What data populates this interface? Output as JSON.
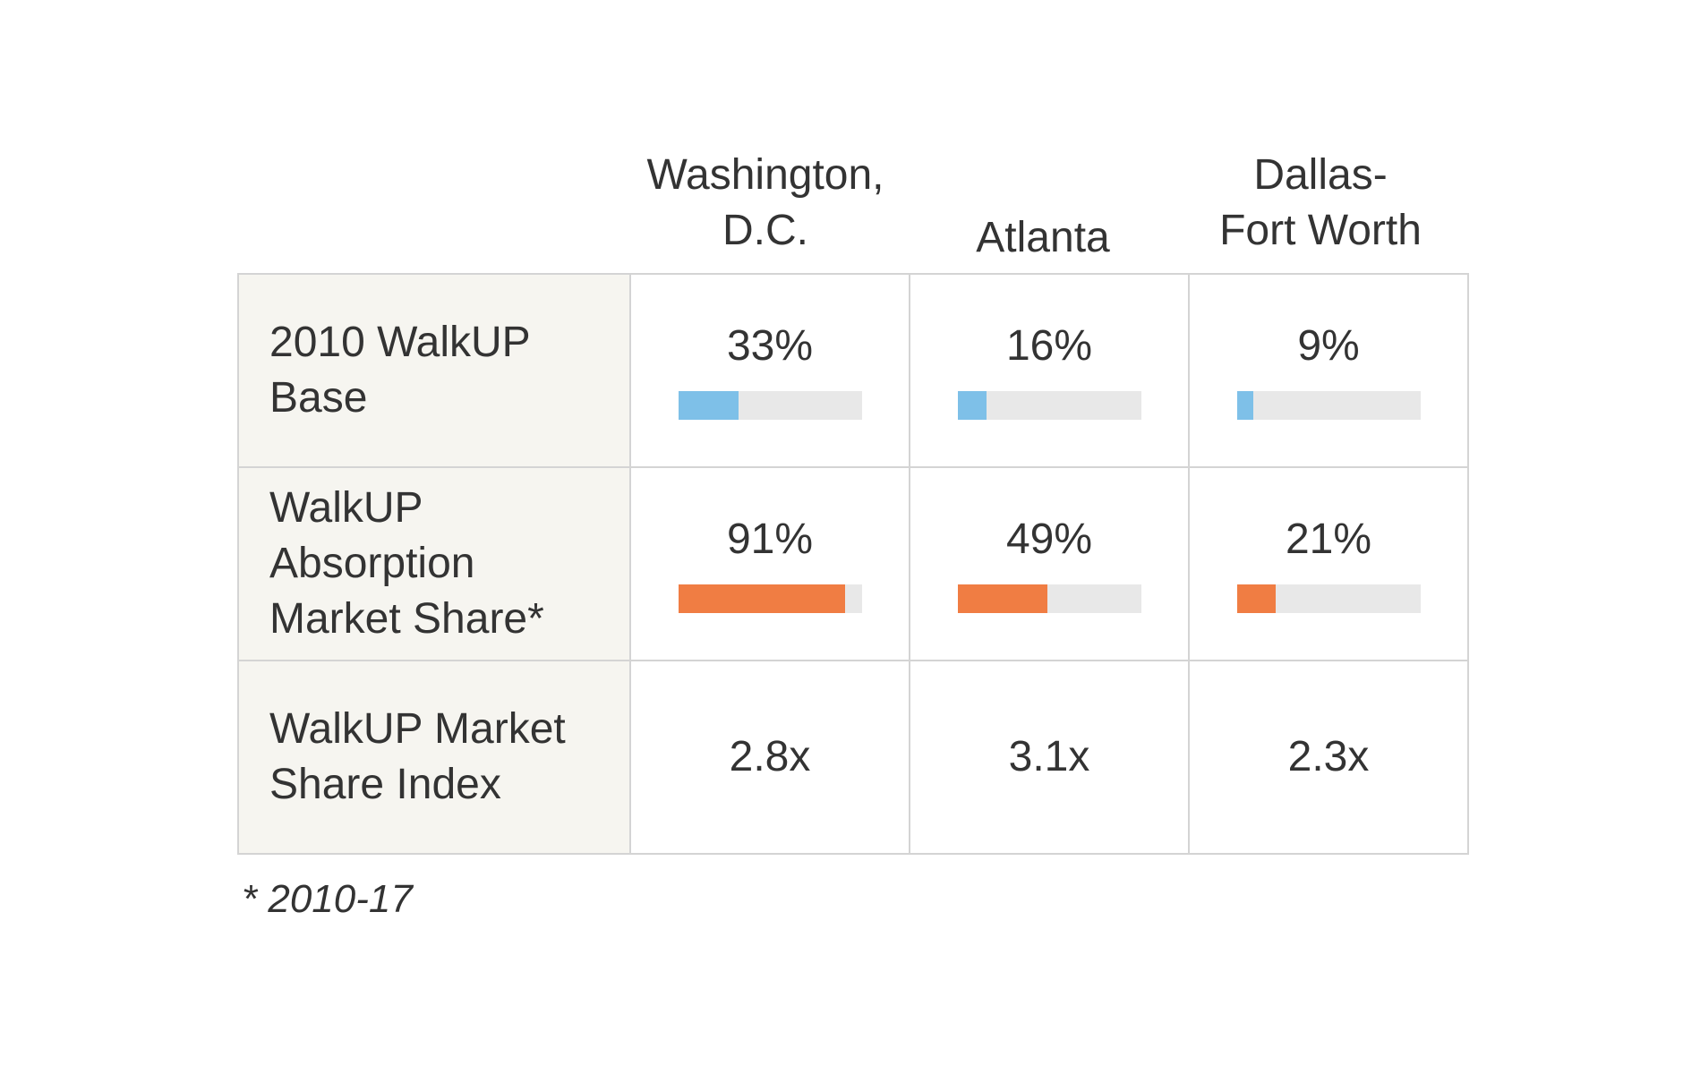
{
  "chart_data": {
    "type": "table",
    "columns": [
      "Washington,\nD.C.",
      "Atlanta",
      "Dallas-\nFort Worth"
    ],
    "rows": [
      {
        "label": "2010 WalkUP\nBase",
        "values": [
          33,
          16,
          9
        ],
        "display": [
          "33%",
          "16%",
          "9%"
        ],
        "bar": true,
        "bar_color": "#7ec0e8"
      },
      {
        "label": "WalkUP\nAbsorption\nMarket Share*",
        "values": [
          91,
          49,
          21
        ],
        "display": [
          "91%",
          "49%",
          "21%"
        ],
        "bar": true,
        "bar_color": "#f07d43"
      },
      {
        "label": "WalkUP Market\nShare Index",
        "values": [
          2.8,
          3.1,
          2.3
        ],
        "display": [
          "2.8x",
          "3.1x",
          "2.3x"
        ],
        "bar": false
      }
    ],
    "footnote": "* 2010-17"
  },
  "colors": {
    "bar_track": "#e8e8e8",
    "label_background": "#f6f5f0",
    "grid": "#d4d4d4",
    "text": "#333333"
  }
}
